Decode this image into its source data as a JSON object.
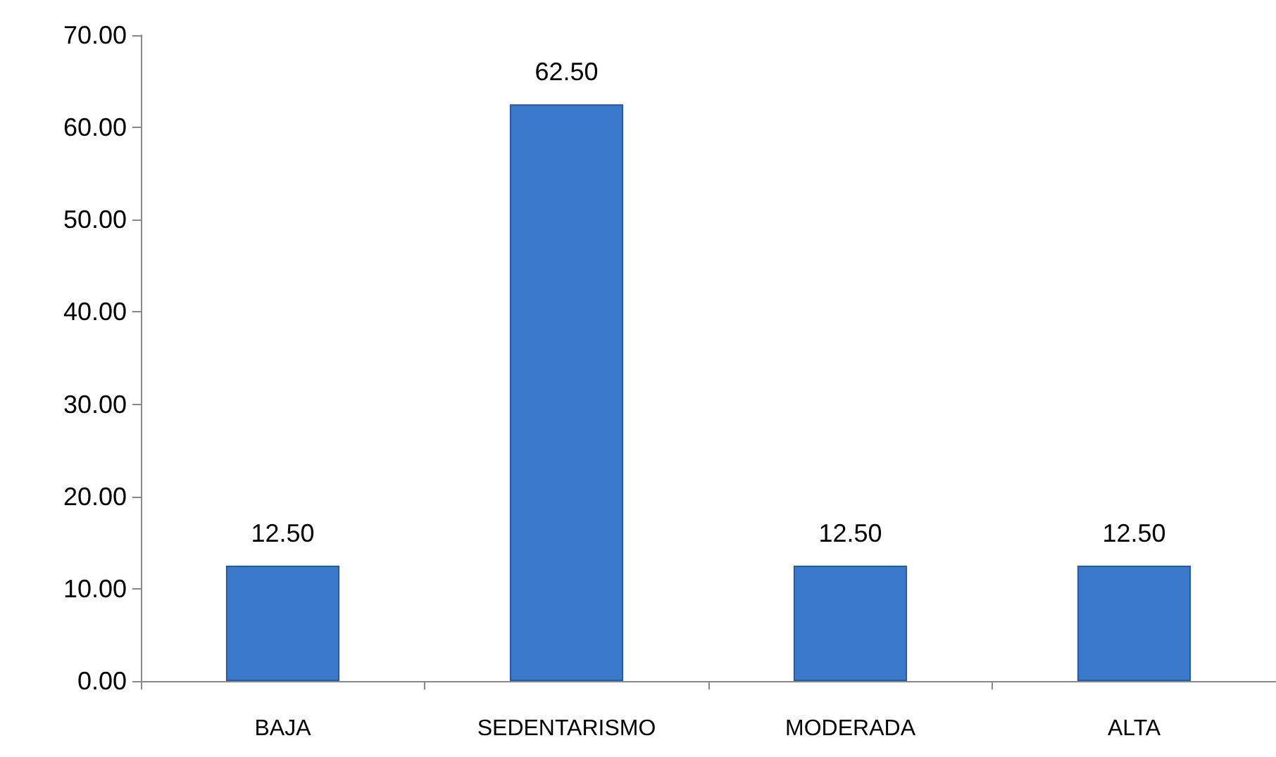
{
  "chart_data": {
    "type": "bar",
    "categories": [
      "BAJA",
      "SEDENTARISMO",
      "MODERADA",
      "ALTA"
    ],
    "values": [
      12.5,
      62.5,
      12.5,
      12.5
    ],
    "value_labels": [
      "12.50",
      "62.50",
      "12.50",
      "12.50"
    ],
    "color": "#3a78cc",
    "ylim": [
      0,
      70
    ],
    "yticks": [
      {
        "value": 0,
        "label": "0.00"
      },
      {
        "value": 10,
        "label": "10.00"
      },
      {
        "value": 20,
        "label": "20.00"
      },
      {
        "value": 30,
        "label": "30.00"
      },
      {
        "value": 40,
        "label": "40.00"
      },
      {
        "value": 50,
        "label": "50.00"
      },
      {
        "value": 60,
        "label": "60.00"
      },
      {
        "value": 70,
        "label": "70.00"
      }
    ],
    "grid": false
  }
}
